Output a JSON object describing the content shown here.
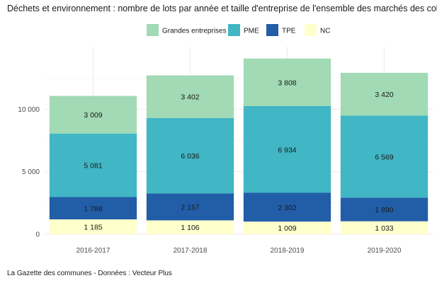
{
  "title": "Déchets et environnement : nombre de lots par année et taille d'entreprise de l'ensemble des marchés des coll",
  "caption": "La Gazette des communes - Données : Vecteur Plus",
  "chart_data": {
    "type": "bar",
    "stacked": true,
    "title": "Déchets et environnement : nombre de lots par année et taille d'entreprise de l'ensemble des marchés des coll",
    "xlabel": "",
    "ylabel": "",
    "categories": [
      "2016-2017",
      "2017-2018",
      "2018-2019",
      "2019-2020"
    ],
    "ylim": [
      0,
      15000
    ],
    "yticks": [
      0,
      5000,
      10000
    ],
    "ytick_labels": [
      "0",
      "5 000",
      "10 000"
    ],
    "legend_position": "top",
    "series": [
      {
        "name": "NC",
        "color": "#ffffcc",
        "values": [
          1185,
          1106,
          1009,
          1033
        ],
        "labels": [
          "1 185",
          "1 106",
          "1 009",
          "1 033"
        ]
      },
      {
        "name": "TPE",
        "color": "#225ea8",
        "values": [
          1788,
          2157,
          2302,
          1890
        ],
        "labels": [
          "1 788",
          "2 157",
          "2 302",
          "1 890"
        ]
      },
      {
        "name": "PME",
        "color": "#41b6c4",
        "values": [
          5081,
          6036,
          6934,
          6569
        ],
        "labels": [
          "5 081",
          "6 036",
          "6 934",
          "6 569"
        ]
      },
      {
        "name": "Grandes entreprises",
        "color": "#a1dab4",
        "values": [
          3009,
          3402,
          3808,
          3420
        ],
        "labels": [
          "3 009",
          "3 402",
          "3 808",
          "3 420"
        ]
      }
    ],
    "legend_order": [
      "Grandes entreprises",
      "PME",
      "TPE",
      "NC"
    ]
  }
}
